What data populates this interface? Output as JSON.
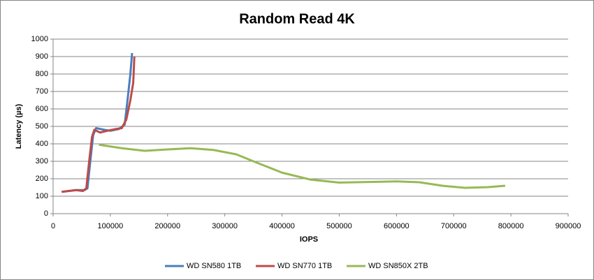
{
  "chart_data": {
    "type": "line",
    "title": "Random Read 4K",
    "x_label": "IOPS",
    "y_label": "Latency (µs)",
    "xlim": [
      0,
      900000
    ],
    "xticks": [
      0,
      100000,
      200000,
      300000,
      400000,
      500000,
      600000,
      700000,
      800000,
      900000
    ],
    "ylim": [
      0,
      1000
    ],
    "yticks": [
      0,
      100,
      200,
      300,
      400,
      500,
      600,
      700,
      800,
      900,
      1000
    ],
    "grid": true,
    "legend": "bottom",
    "series": [
      {
        "name": "WD SN580 1TB",
        "color": "#4a7ebb",
        "x": [
          15000,
          40000,
          55000,
          60000,
          65000,
          70000,
          75000,
          90000,
          100000,
          115000,
          125000,
          130000,
          135000,
          138000
        ],
        "values": [
          125,
          135,
          135,
          145,
          300,
          450,
          490,
          480,
          475,
          485,
          510,
          650,
          800,
          920
        ]
      },
      {
        "name": "WD SN770 1TB",
        "color": "#be4b48",
        "x": [
          15000,
          40000,
          52000,
          58000,
          63000,
          68000,
          72000,
          82000,
          95000,
          110000,
          120000,
          128000,
          135000,
          140000,
          142000
        ],
        "values": [
          125,
          135,
          130,
          145,
          300,
          440,
          480,
          465,
          475,
          485,
          490,
          540,
          650,
          750,
          900
        ]
      },
      {
        "name": "WD SN850X 2TB",
        "color": "#98b954",
        "x": [
          80000,
          120000,
          160000,
          200000,
          240000,
          280000,
          320000,
          350000,
          400000,
          450000,
          500000,
          560000,
          600000,
          640000,
          680000,
          720000,
          760000,
          790000
        ],
        "values": [
          395,
          375,
          360,
          368,
          375,
          365,
          340,
          300,
          235,
          195,
          178,
          182,
          185,
          180,
          160,
          148,
          152,
          160
        ]
      }
    ]
  }
}
